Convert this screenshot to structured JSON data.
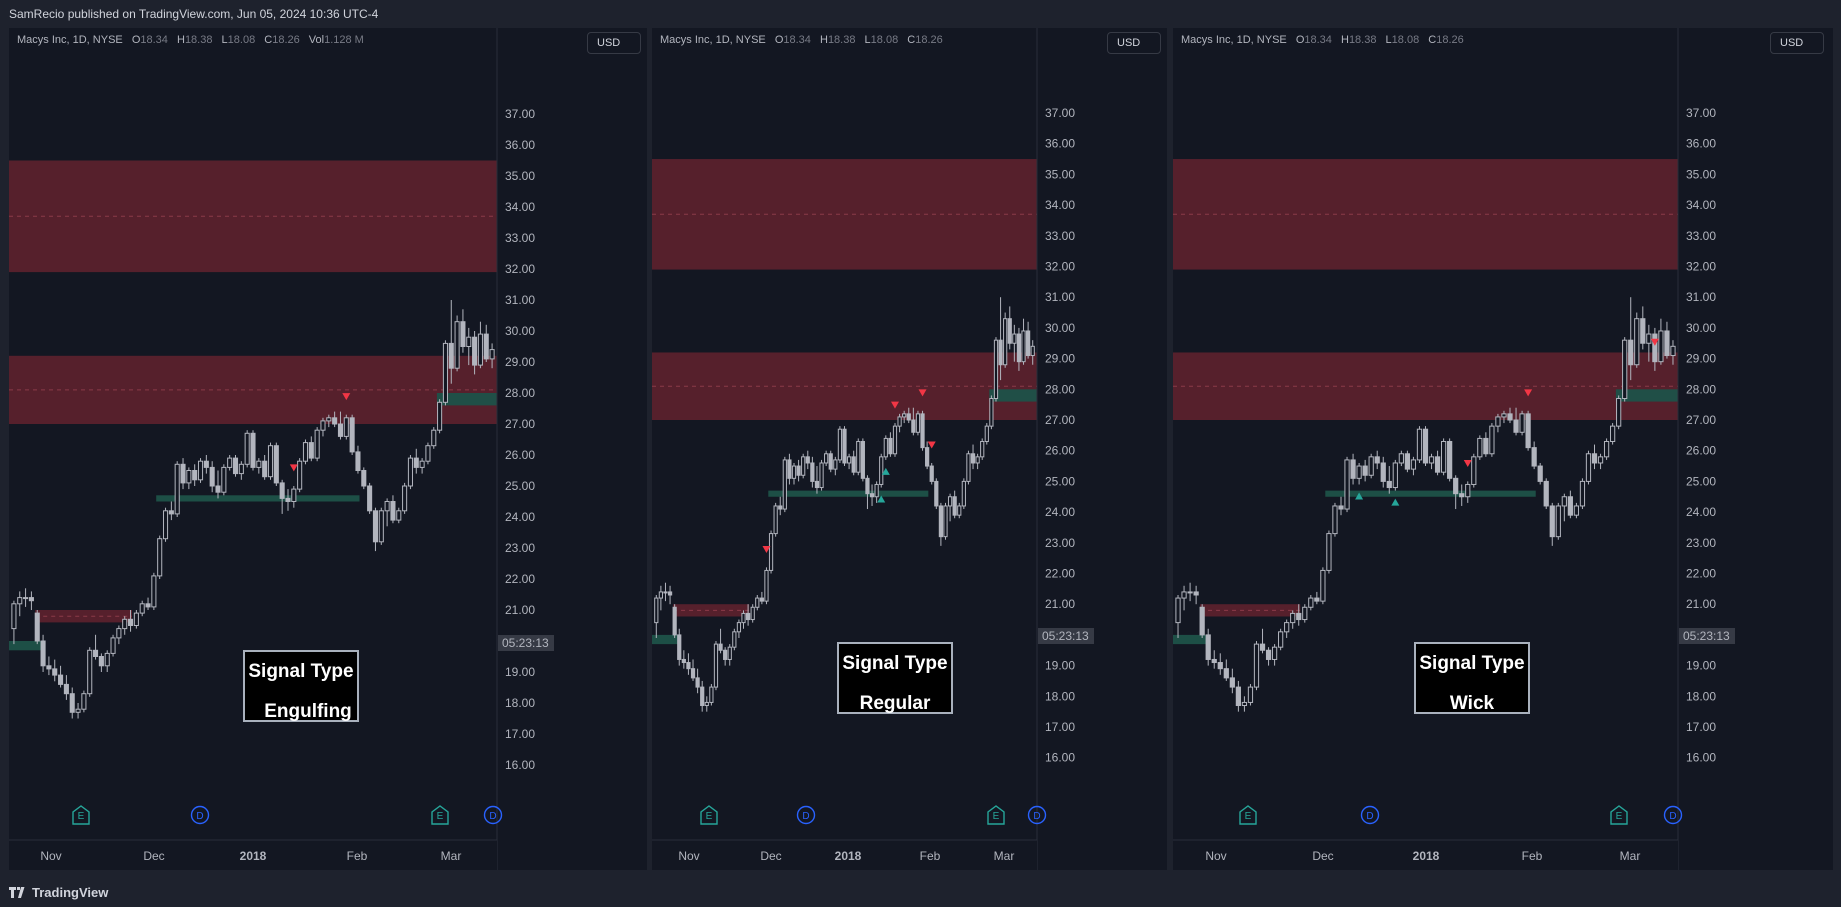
{
  "header": {
    "published": "SamRecio published on TradingView.com, Jun 05, 2024 10:36 UTC-4"
  },
  "footer": {
    "brand": "TradingView"
  },
  "colors": {
    "bg": "#131722",
    "zone_red": "#5a212d",
    "zone_green": "#1d5249",
    "signal_red": "#f23645",
    "signal_green": "#26a69a",
    "candle": "#b2b5be"
  },
  "panels": [
    {
      "legend": {
        "title": "Macys Inc, 1D, NYSE",
        "o_label": "O",
        "o": "18.34",
        "h_label": "H",
        "h": "18.38",
        "l_label": "L",
        "l": "18.08",
        "c_label": "C",
        "c": "18.26",
        "vol_label": "Vol",
        "vol": "1.128 M"
      },
      "currency": "USD",
      "countdown": "05:23:13",
      "signal_box": {
        "line1": "Signal Type",
        "line2": "Engulfing"
      }
    },
    {
      "legend": {
        "title": "Macys Inc, 1D, NYSE",
        "o_label": "O",
        "o": "18.34",
        "h_label": "H",
        "h": "18.38",
        "l_label": "L",
        "l": "18.08",
        "c_label": "C",
        "c": "18.26"
      },
      "currency": "USD",
      "countdown": "05:23:13",
      "signal_box": {
        "line1": "Signal Type",
        "line2": "Regular"
      }
    },
    {
      "legend": {
        "title": "Macys Inc, 1D, NYSE",
        "o_label": "O",
        "o": "18.34",
        "h_label": "H",
        "h": "18.38",
        "l_label": "L",
        "l": "18.08",
        "c_label": "C",
        "c": "18.26"
      },
      "currency": "USD",
      "countdown": "05:23:13",
      "signal_box": {
        "line1": "Signal Type",
        "line2": "Wick"
      }
    }
  ],
  "chart_data": {
    "type": "candlestick",
    "symbol": "Macys Inc",
    "interval": "1D",
    "exchange": "NYSE",
    "y_ticks": [
      "16.00",
      "17.00",
      "18.00",
      "19.00",
      "20.00",
      "21.00",
      "22.00",
      "23.00",
      "24.00",
      "25.00",
      "26.00",
      "27.00",
      "28.00",
      "29.00",
      "30.00",
      "31.00",
      "32.00",
      "33.00",
      "34.00",
      "35.00",
      "36.00",
      "37.00"
    ],
    "x_ticks": [
      "Nov",
      "Dec",
      "2018",
      "Feb",
      "Mar"
    ],
    "event_markers": [
      "E",
      "D",
      "E",
      "D"
    ],
    "zones": [
      {
        "kind": "supply",
        "low": 31.9,
        "high": 35.5,
        "mid": 33.7
      },
      {
        "kind": "supply",
        "low": 27.0,
        "high": 29.2,
        "mid": 28.1
      },
      {
        "kind": "supply",
        "low": 20.6,
        "high": 21.0,
        "mid": 20.8
      },
      {
        "kind": "demand",
        "low": 24.5,
        "high": 24.7
      },
      {
        "kind": "demand",
        "low": 27.6,
        "high": 28.0
      },
      {
        "kind": "demand",
        "low": 19.7,
        "high": 20.0
      }
    ],
    "candles": [
      {
        "o": 20.4,
        "h": 21.3,
        "l": 19.9,
        "c": 21.2
      },
      {
        "o": 21.2,
        "h": 21.6,
        "l": 20.8,
        "c": 21.4
      },
      {
        "o": 21.4,
        "h": 21.7,
        "l": 21.1,
        "c": 21.4
      },
      {
        "o": 21.4,
        "h": 21.6,
        "l": 21.0,
        "c": 21.3
      },
      {
        "o": 20.9,
        "h": 21.0,
        "l": 19.9,
        "c": 20.0
      },
      {
        "o": 20.0,
        "h": 20.2,
        "l": 19.0,
        "c": 19.2
      },
      {
        "o": 19.2,
        "h": 19.5,
        "l": 18.9,
        "c": 19.1
      },
      {
        "o": 19.1,
        "h": 19.4,
        "l": 18.7,
        "c": 18.9
      },
      {
        "o": 18.9,
        "h": 19.2,
        "l": 18.5,
        "c": 18.6
      },
      {
        "o": 18.6,
        "h": 18.9,
        "l": 18.1,
        "c": 18.3
      },
      {
        "o": 18.3,
        "h": 18.5,
        "l": 17.5,
        "c": 17.7
      },
      {
        "o": 17.7,
        "h": 18.0,
        "l": 17.5,
        "c": 17.8
      },
      {
        "o": 17.8,
        "h": 18.4,
        "l": 17.7,
        "c": 18.3
      },
      {
        "o": 18.3,
        "h": 19.8,
        "l": 18.2,
        "c": 19.7
      },
      {
        "o": 19.7,
        "h": 20.2,
        "l": 19.4,
        "c": 19.5
      },
      {
        "o": 19.5,
        "h": 19.6,
        "l": 19.0,
        "c": 19.2
      },
      {
        "o": 19.2,
        "h": 19.7,
        "l": 19.0,
        "c": 19.6
      },
      {
        "o": 19.6,
        "h": 20.2,
        "l": 19.5,
        "c": 20.1
      },
      {
        "o": 20.1,
        "h": 20.5,
        "l": 19.9,
        "c": 20.4
      },
      {
        "o": 20.4,
        "h": 20.8,
        "l": 20.2,
        "c": 20.7
      },
      {
        "o": 20.7,
        "h": 21.0,
        "l": 20.3,
        "c": 20.5
      },
      {
        "o": 20.5,
        "h": 21.0,
        "l": 20.4,
        "c": 20.9
      },
      {
        "o": 20.9,
        "h": 21.3,
        "l": 20.8,
        "c": 21.2
      },
      {
        "o": 21.2,
        "h": 21.4,
        "l": 21.0,
        "c": 21.1
      },
      {
        "o": 21.1,
        "h": 22.2,
        "l": 21.0,
        "c": 22.1
      },
      {
        "o": 22.1,
        "h": 23.4,
        "l": 22.0,
        "c": 23.3
      },
      {
        "o": 23.3,
        "h": 24.3,
        "l": 23.2,
        "c": 24.2
      },
      {
        "o": 24.2,
        "h": 24.5,
        "l": 23.9,
        "c": 24.1
      },
      {
        "o": 24.1,
        "h": 25.8,
        "l": 24.0,
        "c": 25.7
      },
      {
        "o": 25.7,
        "h": 25.9,
        "l": 24.9,
        "c": 25.1
      },
      {
        "o": 25.1,
        "h": 25.6,
        "l": 24.9,
        "c": 25.5
      },
      {
        "o": 25.5,
        "h": 25.7,
        "l": 25.0,
        "c": 25.2
      },
      {
        "o": 25.2,
        "h": 25.9,
        "l": 25.1,
        "c": 25.8
      },
      {
        "o": 25.8,
        "h": 26.0,
        "l": 25.4,
        "c": 25.6
      },
      {
        "o": 25.6,
        "h": 25.8,
        "l": 24.8,
        "c": 25.0
      },
      {
        "o": 25.0,
        "h": 25.5,
        "l": 24.6,
        "c": 24.8
      },
      {
        "o": 24.8,
        "h": 25.7,
        "l": 24.7,
        "c": 25.6
      },
      {
        "o": 25.6,
        "h": 26.0,
        "l": 25.5,
        "c": 25.9
      },
      {
        "o": 25.9,
        "h": 26.0,
        "l": 25.3,
        "c": 25.4
      },
      {
        "o": 25.4,
        "h": 25.8,
        "l": 25.2,
        "c": 25.7
      },
      {
        "o": 25.7,
        "h": 26.8,
        "l": 25.6,
        "c": 26.7
      },
      {
        "o": 26.7,
        "h": 26.8,
        "l": 25.5,
        "c": 25.6
      },
      {
        "o": 25.6,
        "h": 25.9,
        "l": 25.4,
        "c": 25.8
      },
      {
        "o": 25.8,
        "h": 26.0,
        "l": 25.2,
        "c": 25.3
      },
      {
        "o": 25.3,
        "h": 26.4,
        "l": 25.2,
        "c": 26.3
      },
      {
        "o": 26.3,
        "h": 26.4,
        "l": 25.0,
        "c": 25.1
      },
      {
        "o": 25.1,
        "h": 25.2,
        "l": 24.1,
        "c": 24.6
      },
      {
        "o": 24.6,
        "h": 24.9,
        "l": 24.2,
        "c": 24.5
      },
      {
        "o": 24.5,
        "h": 25.0,
        "l": 24.3,
        "c": 24.9
      },
      {
        "o": 24.9,
        "h": 25.9,
        "l": 24.8,
        "c": 25.8
      },
      {
        "o": 25.8,
        "h": 26.5,
        "l": 25.7,
        "c": 26.4
      },
      {
        "o": 26.4,
        "h": 26.6,
        "l": 25.8,
        "c": 25.9
      },
      {
        "o": 25.9,
        "h": 26.9,
        "l": 25.8,
        "c": 26.8
      },
      {
        "o": 26.8,
        "h": 27.2,
        "l": 26.6,
        "c": 27.1
      },
      {
        "o": 27.1,
        "h": 27.3,
        "l": 26.9,
        "c": 27.2
      },
      {
        "o": 27.2,
        "h": 27.4,
        "l": 26.9,
        "c": 27.0
      },
      {
        "o": 27.0,
        "h": 27.4,
        "l": 26.5,
        "c": 26.6
      },
      {
        "o": 26.6,
        "h": 27.3,
        "l": 26.5,
        "c": 27.2
      },
      {
        "o": 27.2,
        "h": 27.3,
        "l": 26.0,
        "c": 26.1
      },
      {
        "o": 26.1,
        "h": 26.3,
        "l": 25.4,
        "c": 25.5
      },
      {
        "o": 25.5,
        "h": 25.6,
        "l": 24.9,
        "c": 25.0
      },
      {
        "o": 25.0,
        "h": 25.1,
        "l": 24.1,
        "c": 24.2
      },
      {
        "o": 24.2,
        "h": 24.3,
        "l": 22.9,
        "c": 23.2
      },
      {
        "o": 23.2,
        "h": 24.3,
        "l": 23.1,
        "c": 24.2
      },
      {
        "o": 24.2,
        "h": 24.6,
        "l": 23.7,
        "c": 24.5
      },
      {
        "o": 24.5,
        "h": 24.7,
        "l": 23.8,
        "c": 23.9
      },
      {
        "o": 23.9,
        "h": 24.3,
        "l": 23.8,
        "c": 24.2
      },
      {
        "o": 24.2,
        "h": 25.1,
        "l": 24.1,
        "c": 25.0
      },
      {
        "o": 25.0,
        "h": 26.0,
        "l": 24.9,
        "c": 25.9
      },
      {
        "o": 25.9,
        "h": 26.2,
        "l": 25.4,
        "c": 25.6
      },
      {
        "o": 25.6,
        "h": 25.9,
        "l": 25.4,
        "c": 25.8
      },
      {
        "o": 25.8,
        "h": 26.4,
        "l": 25.7,
        "c": 26.3
      },
      {
        "o": 26.3,
        "h": 26.9,
        "l": 26.2,
        "c": 26.8
      },
      {
        "o": 26.8,
        "h": 27.8,
        "l": 26.7,
        "c": 27.7
      },
      {
        "o": 27.7,
        "h": 29.7,
        "l": 27.6,
        "c": 29.6
      },
      {
        "o": 29.6,
        "h": 31.0,
        "l": 28.3,
        "c": 28.8
      },
      {
        "o": 28.8,
        "h": 30.5,
        "l": 28.7,
        "c": 30.3
      },
      {
        "o": 30.3,
        "h": 30.7,
        "l": 29.3,
        "c": 29.5
      },
      {
        "o": 29.5,
        "h": 30.1,
        "l": 28.9,
        "c": 29.8
      },
      {
        "o": 29.8,
        "h": 30.0,
        "l": 28.6,
        "c": 28.9
      },
      {
        "o": 28.9,
        "h": 30.3,
        "l": 28.8,
        "c": 29.9
      },
      {
        "o": 29.9,
        "h": 30.2,
        "l": 29.0,
        "c": 29.1
      },
      {
        "o": 29.1,
        "h": 29.6,
        "l": 28.8,
        "c": 29.4
      }
    ],
    "bearish_signals": {
      "Engulfing": [
        48,
        57
      ],
      "Regular": [
        52,
        58,
        60,
        24
      ],
      "Wick": [
        48,
        58,
        79
      ]
    },
    "bullish_signals": {
      "Engulfing": [],
      "Regular": [
        49,
        50
      ],
      "Wick": [
        30,
        36
      ]
    }
  }
}
